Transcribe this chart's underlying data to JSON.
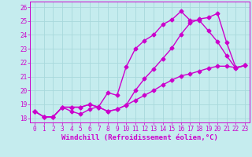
{
  "xlabel": "Windchill (Refroidissement éolien,°C)",
  "xlim": [
    -0.5,
    23.5
  ],
  "ylim": [
    17.7,
    26.4
  ],
  "xticks": [
    0,
    1,
    2,
    3,
    4,
    5,
    6,
    7,
    8,
    9,
    10,
    11,
    12,
    13,
    14,
    15,
    16,
    17,
    18,
    19,
    20,
    21,
    22,
    23
  ],
  "yticks": [
    18,
    19,
    20,
    21,
    22,
    23,
    24,
    25,
    26
  ],
  "background_color": "#c5ecee",
  "grid_color": "#a8d8dc",
  "line_color": "#cc00cc",
  "line1_x": [
    0,
    1,
    2,
    3,
    4,
    5,
    6,
    7,
    8,
    9,
    10,
    11,
    12,
    13,
    14,
    15,
    16,
    17,
    18,
    19,
    20,
    21,
    22,
    23
  ],
  "line1_y": [
    18.5,
    18.1,
    18.1,
    18.8,
    18.8,
    18.8,
    19.0,
    18.8,
    18.5,
    18.65,
    18.95,
    19.3,
    19.65,
    20.0,
    20.4,
    20.75,
    21.05,
    21.2,
    21.4,
    21.6,
    21.75,
    21.75,
    21.65,
    21.8
  ],
  "line2_x": [
    0,
    1,
    2,
    3,
    4,
    5,
    6,
    7,
    8,
    9,
    10,
    11,
    12,
    13,
    14,
    15,
    16,
    17,
    18,
    19,
    20,
    21,
    22,
    23
  ],
  "line2_y": [
    18.5,
    18.1,
    18.1,
    18.8,
    18.5,
    18.3,
    18.65,
    18.85,
    19.85,
    19.65,
    21.7,
    23.0,
    23.6,
    24.0,
    24.75,
    25.1,
    25.7,
    25.05,
    25.05,
    24.3,
    23.5,
    22.5,
    21.6,
    21.8
  ],
  "line3_x": [
    0,
    1,
    2,
    3,
    4,
    5,
    6,
    7,
    8,
    9,
    10,
    11,
    12,
    13,
    14,
    15,
    16,
    17,
    18,
    19,
    20,
    21,
    22,
    23
  ],
  "line3_y": [
    18.5,
    18.1,
    18.1,
    18.8,
    18.8,
    18.8,
    19.0,
    18.8,
    18.5,
    18.65,
    18.95,
    20.0,
    20.85,
    21.55,
    22.3,
    23.05,
    24.05,
    24.85,
    25.15,
    25.25,
    25.55,
    23.45,
    21.65,
    21.8
  ],
  "marker": "D",
  "markersize": 2.5,
  "linewidth": 1.0,
  "tick_fontsize": 5.5,
  "label_fontsize": 6.5
}
